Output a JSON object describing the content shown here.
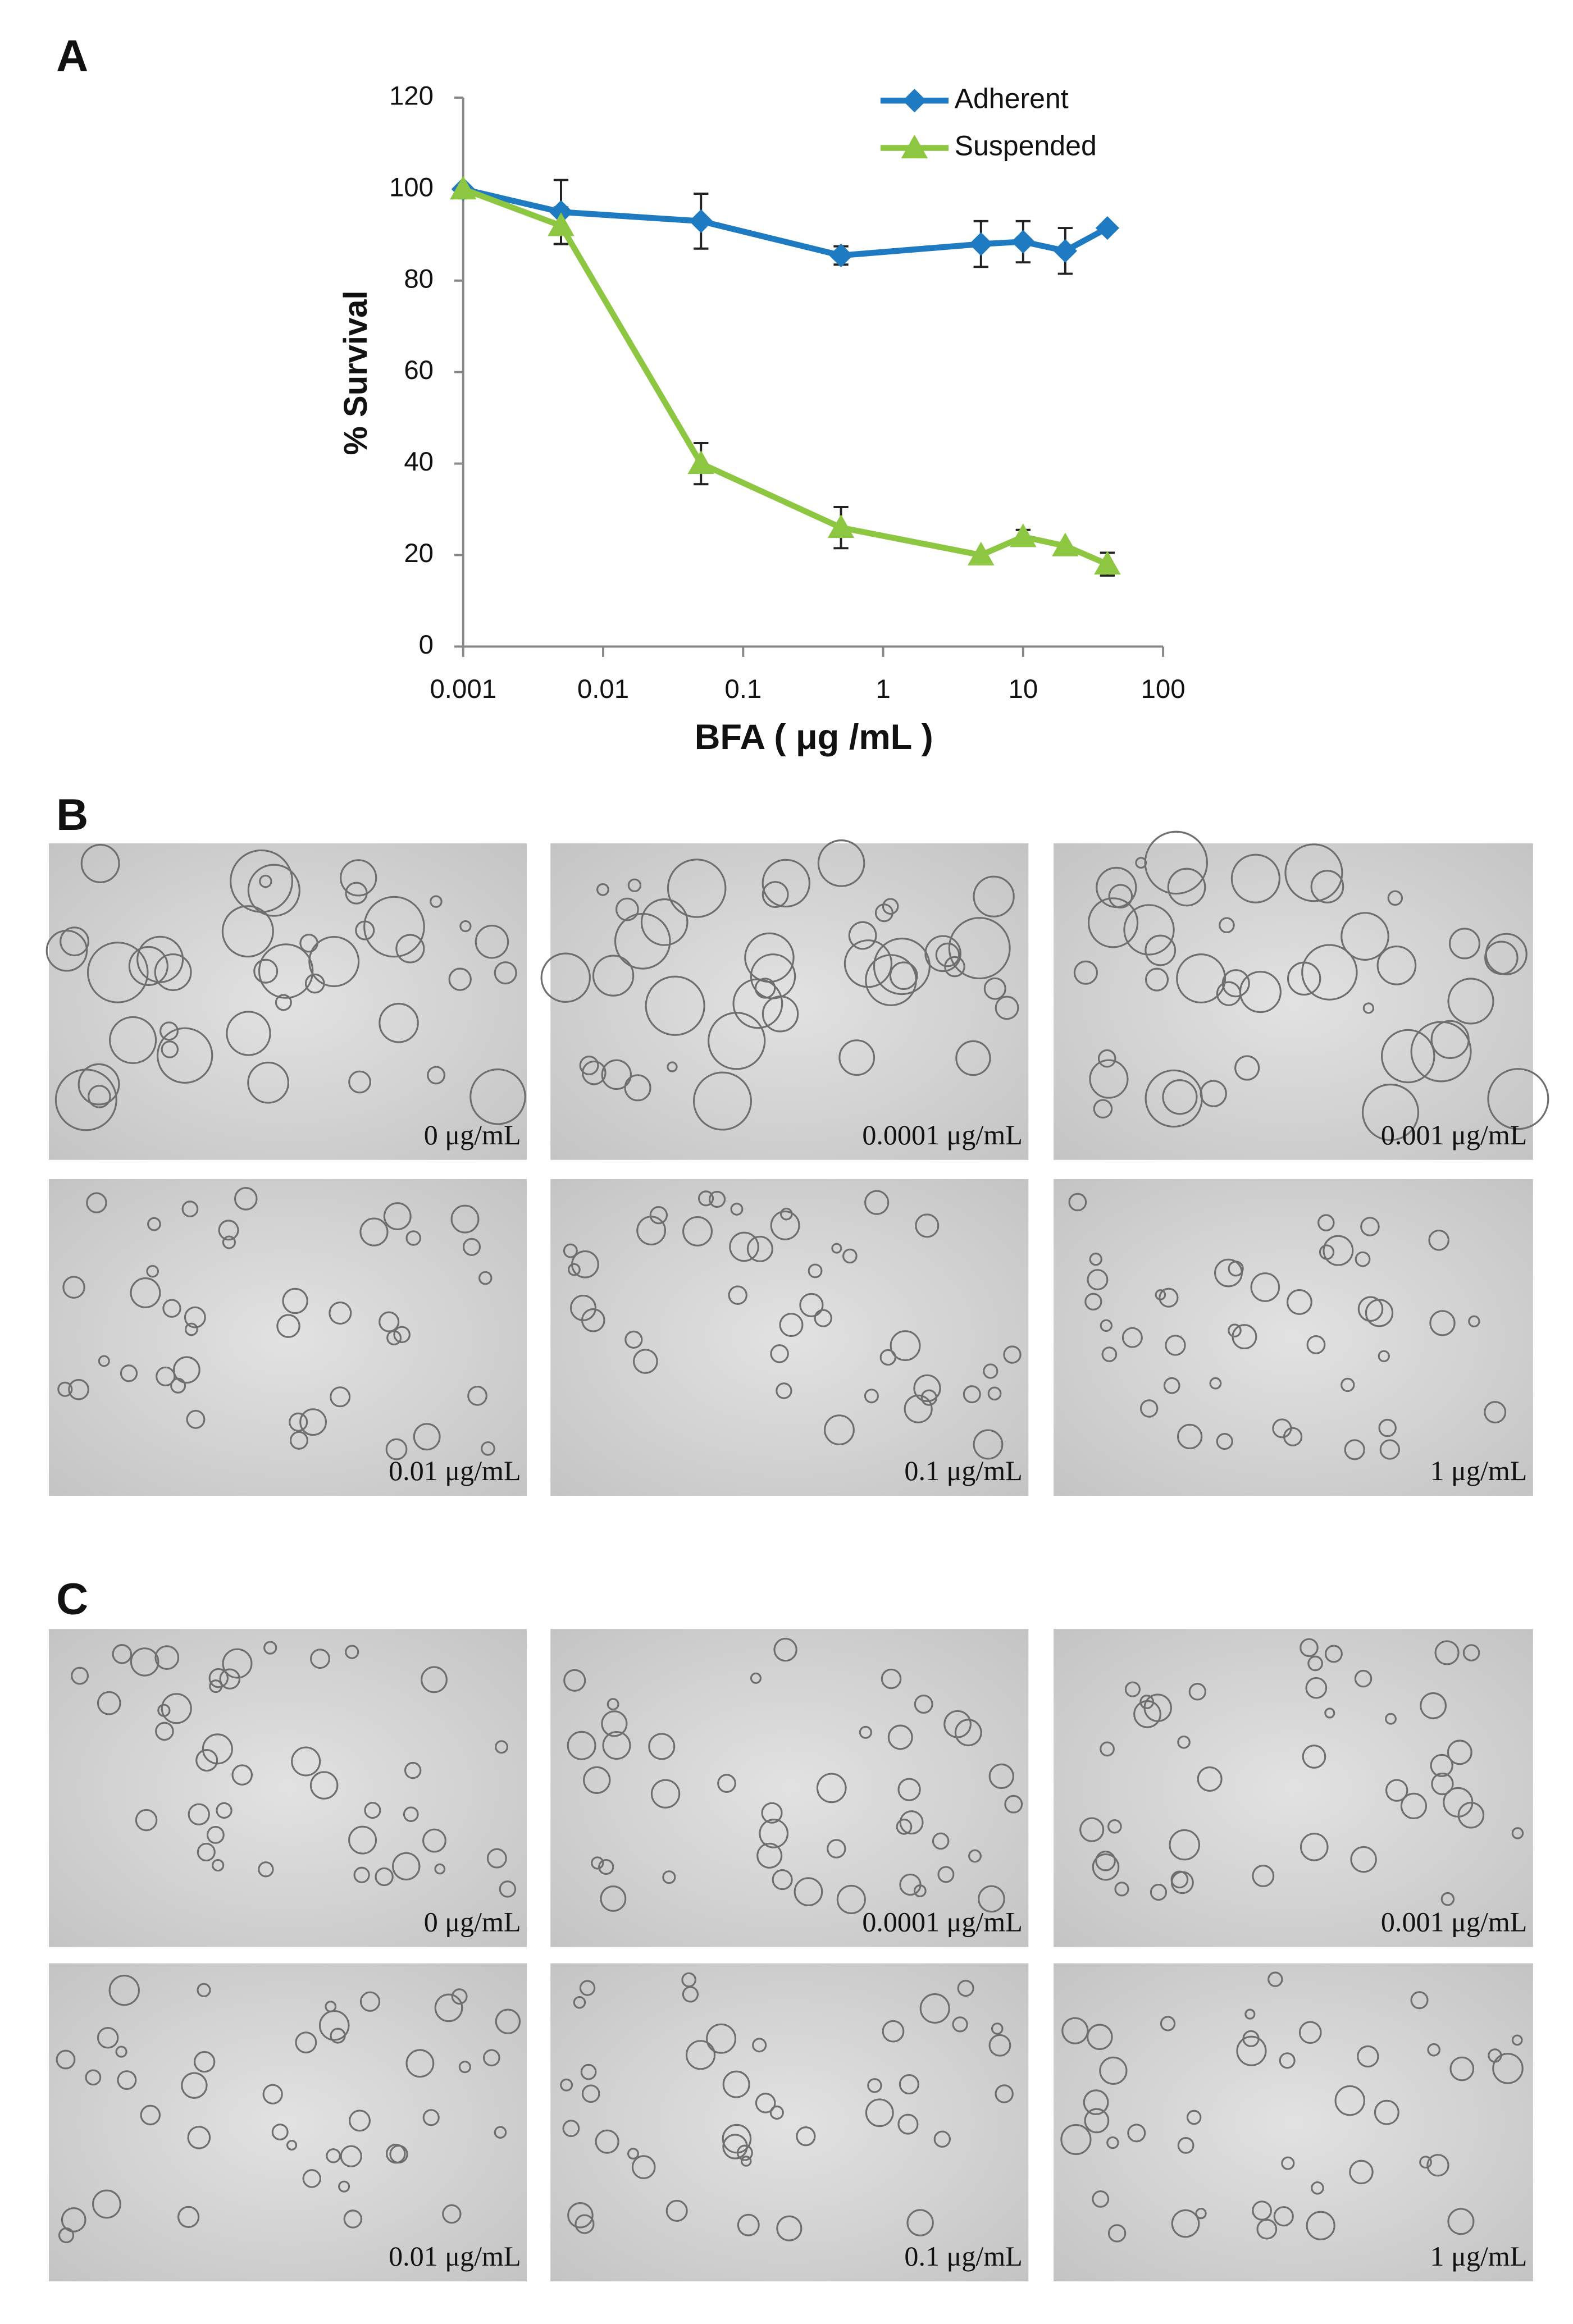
{
  "chart_data": {
    "type": "line",
    "panel_label": "A",
    "x_label": "BFA ( μg /mL  )",
    "y_label": "% Survival",
    "x": [
      0.001,
      0.005,
      0.05,
      0.5,
      5,
      10,
      20,
      40
    ],
    "series": [
      {
        "name": "Adherent",
        "color": "#1f7bc1",
        "marker": "diamond",
        "values": [
          100,
          95,
          93,
          85.5,
          88,
          88.5,
          86.5,
          91.5
        ],
        "errors": [
          null,
          7,
          6,
          2,
          5,
          4.5,
          5,
          null
        ]
      },
      {
        "name": "Suspended",
        "color": "#8dc641",
        "marker": "triangle",
        "values": [
          100,
          92,
          40,
          26,
          20,
          24,
          22,
          18
        ],
        "errors": [
          null,
          4,
          4.5,
          4.5,
          null,
          1.5,
          null,
          2.5
        ]
      }
    ],
    "xscale": "log",
    "xlim": [
      0.001,
      100
    ],
    "xticks": [
      0.001,
      0.01,
      0.1,
      1,
      10,
      100
    ],
    "ylim": [
      0,
      120
    ],
    "yticks": [
      0,
      20,
      40,
      60,
      80,
      100,
      120
    ],
    "grid": false,
    "legend": "upper right"
  },
  "panels": [
    {
      "label": "B",
      "captions": [
        "0 μg/mL",
        "0.0001 μg/mL",
        "0.001 μg/mL",
        "0.01 μg/mL",
        "0.1 μg/mL",
        "1 μg/mL"
      ]
    },
    {
      "label": "C",
      "captions": [
        "0 μg/mL",
        "0.0001 μg/mL",
        "0.001 μg/mL",
        "0.01 μg/mL",
        "0.1 μg/mL",
        "1 μg/mL"
      ]
    }
  ]
}
